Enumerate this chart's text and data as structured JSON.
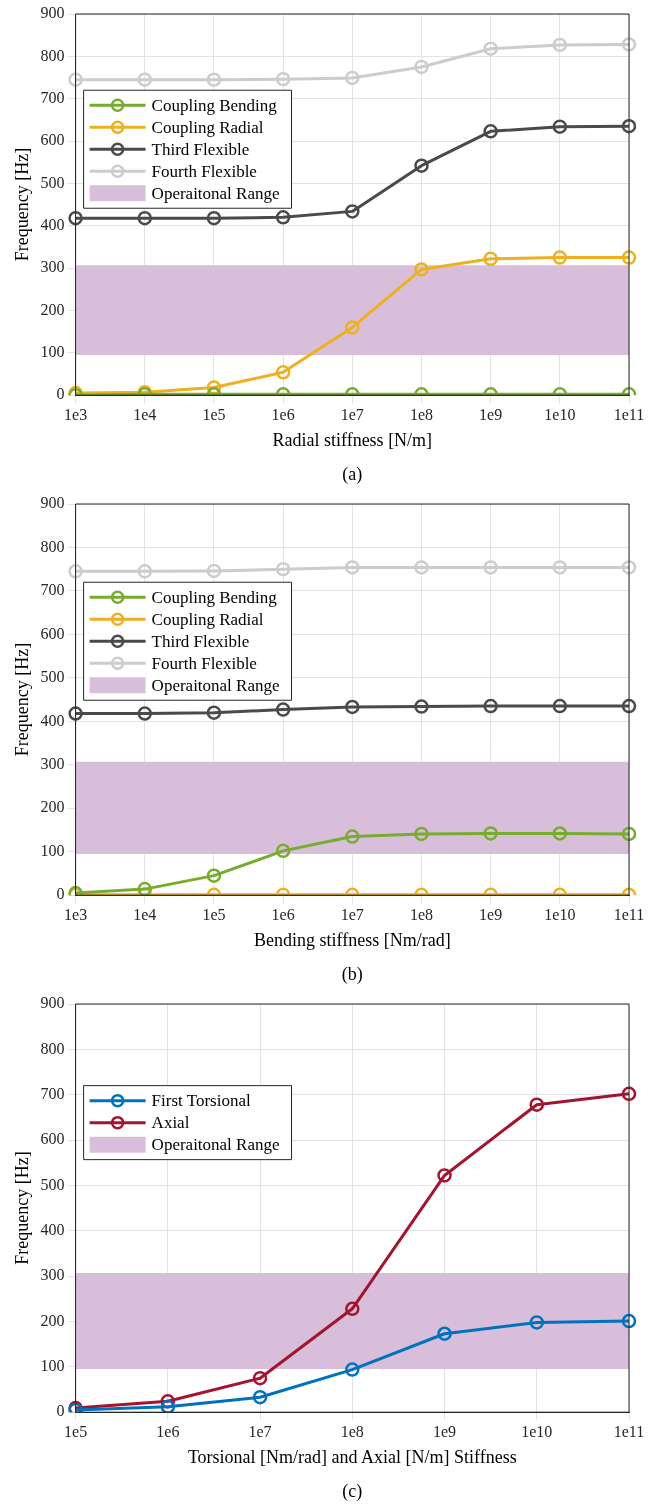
{
  "chart_data": [
    {
      "type": "line",
      "xlabel": "Radial stiffness [N/m]",
      "ylabel": "Frequency [Hz]",
      "annotations": [
        "(a)"
      ],
      "categories": [
        "1e3",
        "1e4",
        "1e5",
        "1e6",
        "1e7",
        "1e8",
        "1e9",
        "1e10",
        "1e11"
      ],
      "series": [
        {
          "name": "Coupling Bending",
          "color": "#77ac30",
          "values": [
            0,
            2,
            2,
            2,
            2,
            2,
            2,
            2,
            2
          ]
        },
        {
          "name": "Coupling Radial",
          "color": "#edb120",
          "values": [
            5,
            7,
            18,
            54,
            160,
            297,
            322,
            325,
            325
          ]
        },
        {
          "name": "Third Flexible",
          "color": "#4a4a4a",
          "values": [
            418,
            418,
            418,
            420,
            434,
            542,
            623,
            634,
            635
          ]
        },
        {
          "name": "Fourth Flexible",
          "color": "#cccccc",
          "values": [
            745,
            745,
            745,
            746,
            749,
            775,
            818,
            827,
            828
          ]
        }
      ],
      "bands": [
        {
          "axis": "y",
          "from": 95,
          "to": 307,
          "label": "Operaitonal Range",
          "color": "#d8bedb"
        }
      ],
      "ylim": [
        0,
        900
      ],
      "yticks": [
        0,
        100,
        200,
        300,
        400,
        500,
        600,
        700,
        800,
        900
      ],
      "grid": true,
      "legend": "top left",
      "marker": "circle",
      "line_style": "solid"
    },
    {
      "type": "line",
      "xlabel": "Bending stiffness [Nm/rad]",
      "ylabel": "Frequency [Hz]",
      "annotations": [
        "(b)"
      ],
      "categories": [
        "1e3",
        "1e4",
        "1e5",
        "1e6",
        "1e7",
        "1e8",
        "1e9",
        "1e10",
        "1e11"
      ],
      "series": [
        {
          "name": "Coupling Bending",
          "color": "#77ac30",
          "values": [
            5,
            14,
            45,
            102,
            135,
            141,
            142,
            142,
            141
          ]
        },
        {
          "name": "Coupling Radial",
          "color": "#edb120",
          "values": [
            1,
            1,
            1,
            1,
            1,
            1,
            1,
            1,
            1
          ]
        },
        {
          "name": "Third Flexible",
          "color": "#4a4a4a",
          "values": [
            418,
            418,
            420,
            427,
            433,
            434,
            435,
            435,
            435
          ]
        },
        {
          "name": "Fourth Flexible",
          "color": "#cccccc",
          "values": [
            745,
            745,
            746,
            750,
            754,
            754,
            754,
            754,
            754
          ]
        }
      ],
      "bands": [
        {
          "axis": "y",
          "from": 95,
          "to": 307,
          "label": "Operaitonal Range",
          "color": "#d8bedb"
        }
      ],
      "ylim": [
        0,
        900
      ],
      "yticks": [
        0,
        100,
        200,
        300,
        400,
        500,
        600,
        700,
        800,
        900
      ],
      "grid": true,
      "legend": "top left",
      "marker": "circle",
      "line_style": "solid"
    },
    {
      "type": "line",
      "xlabel": "Torsional [Nm/rad] and Axial [N/m] Stiffness",
      "ylabel": "Frequency [Hz]",
      "annotations": [
        "(c)"
      ],
      "categories": [
        "1e5",
        "1e6",
        "1e7",
        "1e8",
        "1e9",
        "1e10",
        "1e11"
      ],
      "series": [
        {
          "name": "First Torsional",
          "color": "#0072bd",
          "values": [
            5,
            12,
            33,
            94,
            173,
            198,
            201
          ]
        },
        {
          "name": "Axial",
          "color": "#a2142f",
          "values": [
            9,
            24,
            75,
            228,
            522,
            678,
            702
          ]
        }
      ],
      "bands": [
        {
          "axis": "y",
          "from": 95,
          "to": 307,
          "label": "Operaitonal Range",
          "color": "#d8bedb"
        }
      ],
      "ylim": [
        0,
        900
      ],
      "yticks": [
        0,
        100,
        200,
        300,
        400,
        500,
        600,
        700,
        800,
        900
      ],
      "grid": true,
      "legend": "top left",
      "marker": "circle",
      "line_style": "solid"
    }
  ]
}
